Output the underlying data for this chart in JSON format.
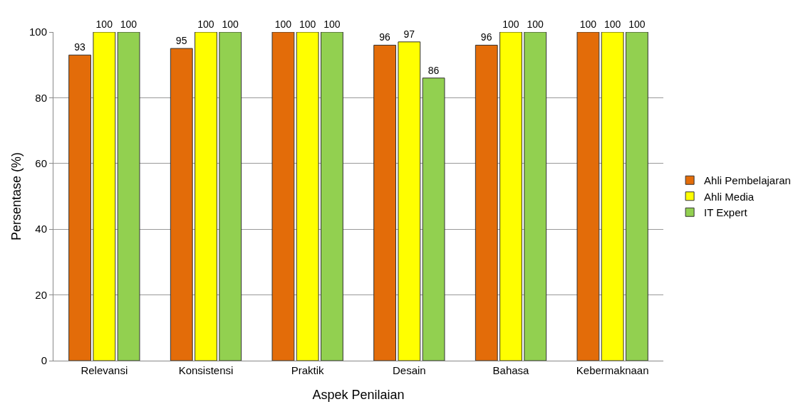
{
  "chart_data": {
    "type": "bar",
    "xlabel": "Aspek Penilaian",
    "ylabel": "Persentase (%)",
    "categories": [
      "Relevansi",
      "Konsistensi",
      "Praktik",
      "Desain",
      "Bahasa",
      "Kebermaknaan"
    ],
    "series": [
      {
        "name": "Ahli Pembelajaran",
        "color": "#e36c09",
        "values": [
          93,
          95,
          100,
          96,
          96,
          100
        ]
      },
      {
        "name": "Ahli Media",
        "color": "#ffff00",
        "values": [
          100,
          100,
          100,
          97,
          100,
          100
        ]
      },
      {
        "name": "IT Expert",
        "color": "#92d050",
        "values": [
          100,
          100,
          100,
          86,
          100,
          100
        ]
      }
    ],
    "ylim": [
      0,
      100
    ],
    "yticks": [
      0,
      20,
      40,
      60,
      80,
      100
    ],
    "grid": "y",
    "legend": "right",
    "data_labels": true
  }
}
